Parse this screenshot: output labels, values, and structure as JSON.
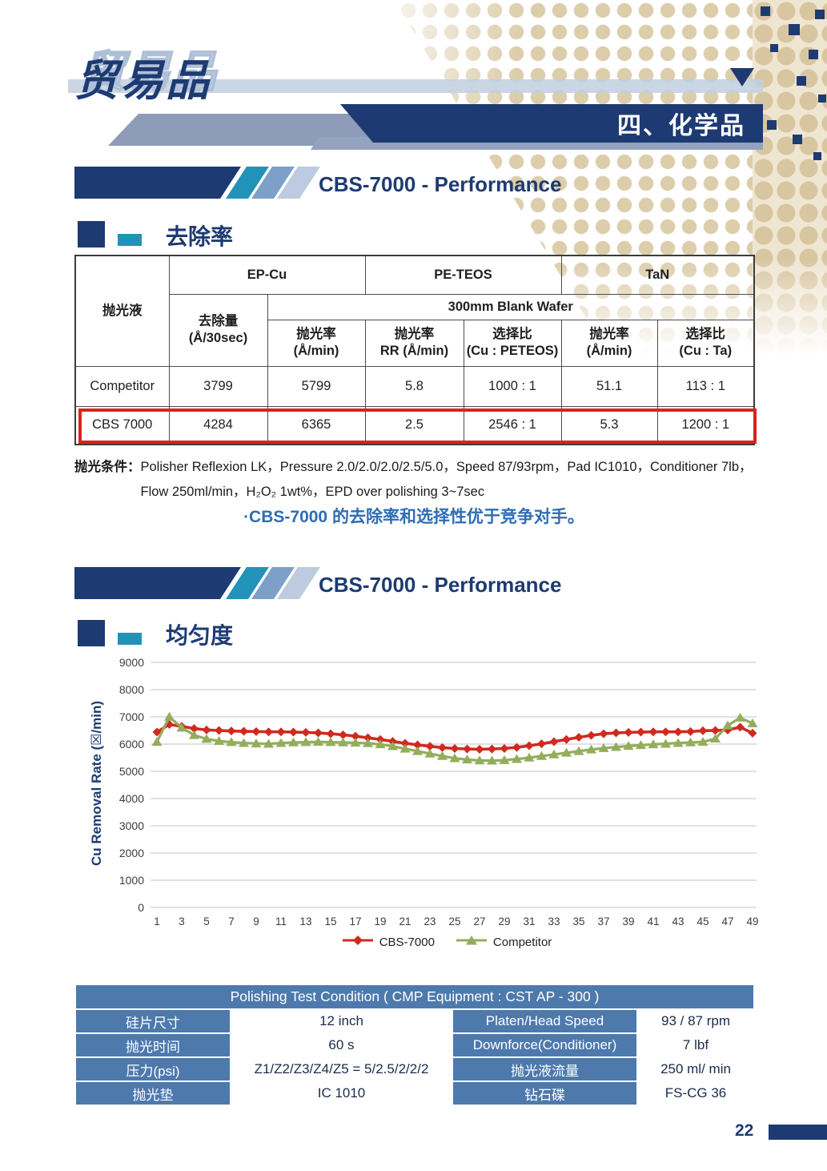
{
  "page": {
    "logo": "贸易品",
    "chapter": "四、化学品",
    "page_number": "22"
  },
  "colors": {
    "navy": "#1d3b72",
    "teal": "#2293b8",
    "steel_blue": "#4d79ad",
    "highlight_red": "#d9241c",
    "conclusion_blue": "#2e6db5",
    "series_red": "#d02a20",
    "series_green": "#94ad5c",
    "dot_tan": "#dccdab"
  },
  "section1": {
    "title": "CBS-7000 - Performance",
    "heading": "去除率",
    "table": {
      "corner": "抛光液",
      "groups": [
        "EP-Cu",
        "PE-TEOS",
        "TaN"
      ],
      "wafer": "300mm Blank Wafer",
      "sub": [
        {
          "l1": "去除量",
          "l2": "(Å/30sec)"
        },
        {
          "l1": "抛光率",
          "l2": "(Å/min)"
        },
        {
          "l1": "抛光率",
          "l2": "RR (Å/min)"
        },
        {
          "l1": "选择比",
          "l2": "(Cu : PETEOS)"
        },
        {
          "l1": "抛光率",
          "l2": "(Å/min)"
        },
        {
          "l1": "选择比",
          "l2": "(Cu : Ta)"
        }
      ],
      "rows": [
        {
          "name": "Competitor",
          "values": [
            "3799",
            "5799",
            "5.8",
            "1000 : 1",
            "51.1",
            "113 : 1"
          ],
          "highlight": false
        },
        {
          "name": "CBS 7000",
          "values": [
            "4284",
            "6365",
            "2.5",
            "2546 : 1",
            "5.3",
            "1200 : 1"
          ],
          "highlight": true
        }
      ]
    },
    "condition_label": "抛光条件：",
    "condition_lines": [
      "Polisher Reflexion LK，Pressure 2.0/2.0/2.0/2.5/5.0，Speed 87/93rpm，Pad IC1010，Conditioner 7lb，",
      "Flow 250ml/min，H₂O₂ 1wt%，EPD over polishing 3~7sec"
    ],
    "conclusion": "·CBS-7000 的去除率和选择性优于竞争对手。"
  },
  "section2": {
    "title": "CBS-7000 - Performance",
    "heading": "均匀度"
  },
  "chart_data": {
    "type": "line",
    "title": "",
    "xlabel": "",
    "ylabel": "Cu Removal Rate (☒/min)",
    "ylim": [
      0,
      9000
    ],
    "ytick_step": 1000,
    "xticks": [
      1,
      3,
      5,
      7,
      9,
      11,
      13,
      15,
      17,
      19,
      21,
      23,
      25,
      27,
      29,
      31,
      33,
      35,
      37,
      39,
      41,
      43,
      45,
      47,
      49
    ],
    "grid": "horizontal",
    "legend_position": "bottom",
    "series": [
      {
        "name": "CBS-7000",
        "color": "#d02a20",
        "marker": "diamond",
        "values": [
          6440,
          6720,
          6650,
          6570,
          6520,
          6500,
          6480,
          6470,
          6460,
          6450,
          6450,
          6440,
          6430,
          6410,
          6380,
          6340,
          6290,
          6230,
          6170,
          6100,
          6030,
          5970,
          5920,
          5870,
          5840,
          5820,
          5810,
          5820,
          5840,
          5880,
          5940,
          6010,
          6090,
          6170,
          6250,
          6320,
          6380,
          6410,
          6430,
          6440,
          6450,
          6450,
          6450,
          6460,
          6490,
          6500,
          6520,
          6620,
          6400
        ]
      },
      {
        "name": "Competitor",
        "color": "#94ad5c",
        "marker": "triangle",
        "values": [
          6080,
          7000,
          6600,
          6330,
          6190,
          6110,
          6070,
          6040,
          6020,
          6010,
          6040,
          6060,
          6070,
          6080,
          6070,
          6060,
          6050,
          6030,
          5990,
          5920,
          5830,
          5740,
          5650,
          5560,
          5480,
          5430,
          5400,
          5390,
          5410,
          5450,
          5500,
          5560,
          5620,
          5680,
          5740,
          5800,
          5850,
          5890,
          5930,
          5960,
          5990,
          6010,
          6040,
          6060,
          6080,
          6200,
          6680,
          6970,
          6760
        ]
      }
    ]
  },
  "condition_table": {
    "header": "Polishing Test Condition ( CMP Equipment : CST AP - 300 )",
    "rows": [
      [
        "硅片尺寸",
        "12 inch",
        "Platen/Head Speed",
        "93 / 87 rpm"
      ],
      [
        "抛光时间",
        "60 s",
        "Downforce(Conditioner)",
        "7 lbf"
      ],
      [
        "压力(psi)",
        "Z1/Z2/Z3/Z4/Z5 = 5/2.5/2/2/2",
        "抛光液流量",
        "250 ml/ min"
      ],
      [
        "抛光垫",
        "IC 1010",
        "钻石碟",
        "FS-CG 36"
      ]
    ]
  }
}
